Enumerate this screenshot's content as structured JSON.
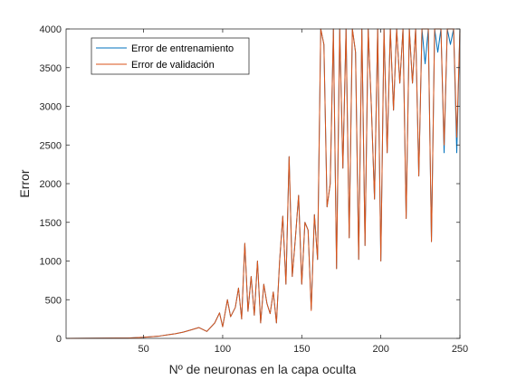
{
  "chart_data": {
    "type": "line",
    "title": "",
    "xlabel": "Nº de neuronas en la capa oculta",
    "ylabel": "Error",
    "xlim": [
      1,
      250
    ],
    "ylim": [
      0,
      4000
    ],
    "xticks": [
      50,
      100,
      150,
      200,
      250
    ],
    "yticks": [
      0,
      500,
      1000,
      1500,
      2000,
      2500,
      3000,
      3500,
      4000
    ],
    "grid": false,
    "legend_position": "top-left",
    "series": [
      {
        "name": "Error de entrenamiento",
        "color": "#0072BD",
        "x": [
          1,
          40,
          50,
          60,
          65,
          70,
          75,
          80,
          85,
          90,
          95,
          98,
          100,
          103,
          105,
          108,
          110,
          112,
          114,
          116,
          118,
          120,
          122,
          124,
          126,
          128,
          130,
          132,
          134,
          136,
          138,
          140,
          142,
          144,
          146,
          148,
          150,
          152,
          154,
          156,
          158,
          160,
          162,
          164,
          166,
          168,
          170,
          172,
          174,
          176,
          178,
          180,
          182,
          184,
          186,
          188,
          190,
          192,
          194,
          196,
          198,
          200,
          202,
          204,
          206,
          208,
          210,
          212,
          214,
          216,
          218,
          220,
          222,
          224,
          226,
          228,
          230,
          232,
          234,
          236,
          238,
          240,
          242,
          244,
          246,
          248,
          250
        ],
        "values": [
          0,
          5,
          15,
          30,
          45,
          60,
          80,
          110,
          140,
          90,
          200,
          330,
          150,
          500,
          280,
          400,
          650,
          250,
          1230,
          350,
          800,
          300,
          1000,
          200,
          700,
          450,
          320,
          600,
          200,
          1000,
          1580,
          700,
          2350,
          800,
          1300,
          1850,
          700,
          1500,
          1400,
          380,
          1600,
          1020,
          4000,
          3800,
          1700,
          2000,
          4000,
          900,
          4000,
          2200,
          4000,
          1300,
          4000,
          3700,
          1020,
          4000,
          1200,
          4000,
          3000,
          1800,
          4000,
          1000,
          4000,
          2400,
          4000,
          2950,
          4000,
          3300,
          4000,
          1550,
          4000,
          3300,
          4000,
          2100,
          4000,
          3550,
          4000,
          1250,
          4000,
          3700,
          4000,
          2400,
          4000,
          3800,
          4000,
          2400,
          4000
        ]
      },
      {
        "name": "Error de validación",
        "color": "#D95319",
        "x": [
          1,
          40,
          50,
          60,
          65,
          70,
          75,
          80,
          85,
          90,
          95,
          98,
          100,
          103,
          105,
          108,
          110,
          112,
          114,
          116,
          118,
          120,
          122,
          124,
          126,
          128,
          130,
          132,
          134,
          136,
          138,
          140,
          142,
          144,
          146,
          148,
          150,
          152,
          154,
          156,
          158,
          160,
          162,
          164,
          166,
          168,
          170,
          172,
          174,
          176,
          178,
          180,
          182,
          184,
          186,
          188,
          190,
          192,
          194,
          196,
          198,
          200,
          202,
          204,
          206,
          208,
          210,
          212,
          214,
          216,
          218,
          220,
          222,
          224,
          226,
          228,
          230,
          232,
          234,
          236,
          238,
          240,
          242,
          244,
          246,
          248,
          250
        ],
        "values": [
          0,
          5,
          15,
          30,
          45,
          60,
          80,
          110,
          140,
          90,
          200,
          330,
          150,
          500,
          280,
          400,
          650,
          250,
          1230,
          350,
          800,
          300,
          1000,
          200,
          700,
          450,
          320,
          600,
          200,
          1000,
          1580,
          700,
          2350,
          800,
          1300,
          1850,
          700,
          1500,
          1400,
          360,
          1600,
          1020,
          4000,
          3800,
          1700,
          2000,
          4000,
          900,
          4000,
          2200,
          4000,
          1300,
          4000,
          3700,
          1020,
          4000,
          1200,
          4000,
          3000,
          1800,
          4000,
          1000,
          4000,
          2400,
          4000,
          2950,
          4000,
          3300,
          4000,
          1550,
          4000,
          3300,
          4000,
          2100,
          4000,
          4000,
          4000,
          1250,
          4000,
          4000,
          4000,
          2500,
          4000,
          4000,
          4000,
          2600,
          4000
        ]
      }
    ]
  }
}
